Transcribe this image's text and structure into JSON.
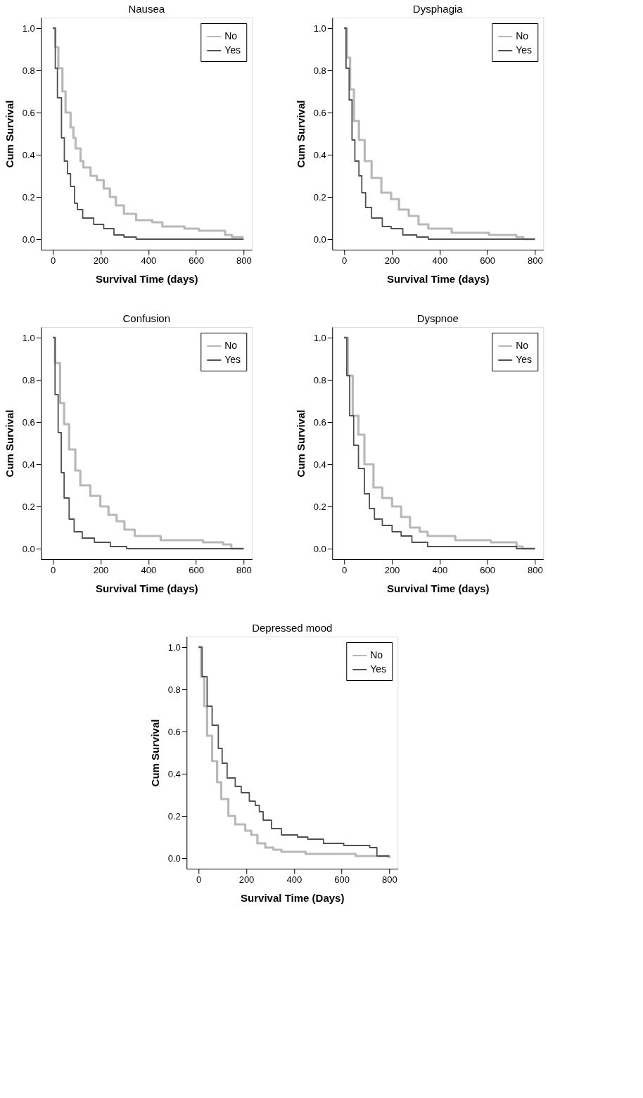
{
  "chart_data": [
    {
      "type": "step",
      "title": "Nausea",
      "xlabel": "Survival Time (days)",
      "ylabel": "Cum Survival",
      "xlim": [
        -50,
        835
      ],
      "xticks": [
        0,
        200,
        400,
        600,
        800
      ],
      "ylim": [
        -0.05,
        1.05
      ],
      "yticks": [
        {
          "value": 0,
          "label": "0.0"
        },
        {
          "value": 0.2,
          "label": "0.2"
        },
        {
          "value": 0.4,
          "label": "0.4"
        },
        {
          "value": 0.6,
          "label": "0.6"
        },
        {
          "value": 0.8,
          "label": "0.8"
        },
        {
          "value": 1,
          "label": "1.0"
        }
      ],
      "grid": false,
      "legend": "top right",
      "series": [
        {
          "name": "No",
          "color": "#b8b8b8",
          "x": [
            0,
            10,
            23,
            40,
            53,
            74,
            86,
            95,
            116,
            128,
            158,
            184,
            213,
            239,
            264,
            298,
            349,
            417,
            459,
            552,
            612,
            688,
            722,
            751,
            800
          ],
          "values": [
            1.0,
            0.91,
            0.81,
            0.7,
            0.6,
            0.53,
            0.48,
            0.43,
            0.37,
            0.34,
            0.3,
            0.28,
            0.24,
            0.2,
            0.16,
            0.12,
            0.09,
            0.08,
            0.06,
            0.05,
            0.04,
            0.04,
            0.02,
            0.01,
            0.01
          ]
        },
        {
          "name": "Yes",
          "color": "#505050",
          "x": [
            0,
            10,
            19,
            36,
            48,
            61,
            74,
            91,
            103,
            125,
            171,
            213,
            256,
            298,
            349,
            800
          ],
          "values": [
            1.0,
            0.81,
            0.67,
            0.48,
            0.37,
            0.31,
            0.25,
            0.17,
            0.14,
            0.1,
            0.07,
            0.05,
            0.02,
            0.01,
            0.0,
            0.0
          ]
        }
      ]
    },
    {
      "type": "step",
      "title": "Dysphagia",
      "xlabel": "Survival Time (days)",
      "ylabel": "Cum Survival",
      "xlim": [
        -50,
        835
      ],
      "xticks": [
        0,
        200,
        400,
        600,
        800
      ],
      "ylim": [
        -0.05,
        1.05
      ],
      "yticks": [
        {
          "value": 0,
          "label": "0.0"
        },
        {
          "value": 0.2,
          "label": "0.2"
        },
        {
          "value": 0.4,
          "label": "0.4"
        },
        {
          "value": 0.6,
          "label": "0.6"
        },
        {
          "value": 0.8,
          "label": "0.8"
        },
        {
          "value": 1,
          "label": "1.0"
        }
      ],
      "grid": false,
      "legend": "top right",
      "series": [
        {
          "name": "No",
          "color": "#b8b8b8",
          "x": [
            0,
            12,
            25,
            41,
            62,
            86,
            115,
            156,
            197,
            230,
            271,
            312,
            353,
            451,
            607,
            722,
            751,
            800
          ],
          "values": [
            1.0,
            0.86,
            0.71,
            0.56,
            0.47,
            0.37,
            0.29,
            0.22,
            0.19,
            0.14,
            0.11,
            0.07,
            0.05,
            0.03,
            0.02,
            0.01,
            0.0,
            0.0
          ]
        },
        {
          "name": "Yes",
          "color": "#505050",
          "x": [
            0,
            8,
            21,
            33,
            45,
            62,
            74,
            90,
            115,
            160,
            197,
            246,
            304,
            353,
            800
          ],
          "values": [
            1.0,
            0.81,
            0.66,
            0.47,
            0.37,
            0.3,
            0.22,
            0.15,
            0.1,
            0.06,
            0.05,
            0.02,
            0.01,
            0.0,
            0.0
          ]
        }
      ]
    },
    {
      "type": "step",
      "title": "Confusion",
      "xlabel": "Survival Time (days)",
      "ylabel": "Cum Survival",
      "xlim": [
        -50,
        835
      ],
      "xticks": [
        0,
        200,
        400,
        600,
        800
      ],
      "ylim": [
        -0.05,
        1.05
      ],
      "yticks": [
        {
          "value": 0,
          "label": "0.0"
        },
        {
          "value": 0.2,
          "label": "0.2"
        },
        {
          "value": 0.4,
          "label": "0.4"
        },
        {
          "value": 0.6,
          "label": "0.6"
        },
        {
          "value": 0.8,
          "label": "0.8"
        },
        {
          "value": 1,
          "label": "1.0"
        }
      ],
      "grid": false,
      "legend": "top right",
      "series": [
        {
          "name": "No",
          "color": "#b8b8b8",
          "x": [
            0,
            9,
            30,
            47,
            68,
            94,
            115,
            157,
            199,
            233,
            267,
            300,
            343,
            452,
            630,
            714,
            748,
            800
          ],
          "values": [
            1.0,
            0.88,
            0.69,
            0.59,
            0.47,
            0.37,
            0.3,
            0.25,
            0.2,
            0.16,
            0.13,
            0.09,
            0.06,
            0.04,
            0.03,
            0.02,
            0.0,
            0.0
          ]
        },
        {
          "name": "Yes",
          "color": "#505050",
          "x": [
            0,
            9,
            22,
            35,
            47,
            68,
            89,
            123,
            174,
            241,
            309,
            800
          ],
          "values": [
            1.0,
            0.73,
            0.55,
            0.36,
            0.24,
            0.14,
            0.08,
            0.05,
            0.03,
            0.01,
            0.0,
            0.0
          ]
        }
      ]
    },
    {
      "type": "step",
      "title": "Dyspnoe",
      "xlabel": "Survival Time (days)",
      "ylabel": "Cum Survival",
      "xlim": [
        -50,
        835
      ],
      "xticks": [
        0,
        200,
        400,
        600,
        800
      ],
      "ylim": [
        -0.05,
        1.05
      ],
      "yticks": [
        {
          "value": 0,
          "label": "0.0"
        },
        {
          "value": 0.2,
          "label": "0.2"
        },
        {
          "value": 0.4,
          "label": "0.4"
        },
        {
          "value": 0.6,
          "label": "0.6"
        },
        {
          "value": 0.8,
          "label": "0.8"
        },
        {
          "value": 1,
          "label": "1.0"
        }
      ],
      "grid": false,
      "legend": "top right",
      "series": [
        {
          "name": "No",
          "color": "#b8b8b8",
          "x": [
            0,
            15,
            36,
            60,
            85,
            123,
            160,
            201,
            239,
            276,
            317,
            350,
            466,
            615,
            723,
            748,
            800
          ],
          "values": [
            1.0,
            0.82,
            0.63,
            0.54,
            0.4,
            0.29,
            0.24,
            0.2,
            0.15,
            0.1,
            0.08,
            0.06,
            0.04,
            0.03,
            0.01,
            0.0,
            0.0
          ]
        },
        {
          "name": "Yes",
          "color": "#505050",
          "x": [
            0,
            11,
            23,
            40,
            60,
            85,
            106,
            127,
            160,
            201,
            239,
            284,
            350,
            466,
            723,
            800
          ],
          "values": [
            1.0,
            0.82,
            0.63,
            0.49,
            0.38,
            0.26,
            0.19,
            0.14,
            0.11,
            0.08,
            0.06,
            0.03,
            0.01,
            0.01,
            0.0,
            0.0
          ]
        }
      ]
    },
    {
      "type": "step",
      "title": "Depressed mood",
      "xlabel": "Survival Time (Days)",
      "ylabel": "Cum Survival",
      "xlim": [
        -50,
        835
      ],
      "xticks": [
        0,
        200,
        400,
        600,
        800
      ],
      "ylim": [
        -0.05,
        1.05
      ],
      "yticks": [
        {
          "value": 0,
          "label": "0.0"
        },
        {
          "value": 0.2,
          "label": "0.2"
        },
        {
          "value": 0.4,
          "label": "0.4"
        },
        {
          "value": 0.6,
          "label": "0.6"
        },
        {
          "value": 0.8,
          "label": "0.8"
        },
        {
          "value": 1,
          "label": "1.0"
        }
      ],
      "grid": false,
      "legend": "top right",
      "series": [
        {
          "name": "No",
          "color": "#b8b8b8",
          "x": [
            0,
            11,
            24,
            36,
            57,
            78,
            95,
            125,
            154,
            196,
            221,
            247,
            280,
            314,
            348,
            449,
            659,
            727,
            800
          ],
          "values": [
            1.0,
            0.86,
            0.72,
            0.58,
            0.46,
            0.36,
            0.28,
            0.2,
            0.16,
            0.13,
            0.11,
            0.07,
            0.05,
            0.04,
            0.03,
            0.02,
            0.01,
            0.01,
            0.0
          ]
        },
        {
          "name": "Yes",
          "color": "#505050",
          "x": [
            0,
            15,
            36,
            57,
            83,
            99,
            120,
            154,
            179,
            213,
            238,
            255,
            271,
            306,
            348,
            415,
            458,
            524,
            609,
            659,
            718,
            748,
            800
          ],
          "values": [
            1.0,
            0.86,
            0.72,
            0.63,
            0.52,
            0.45,
            0.38,
            0.34,
            0.31,
            0.27,
            0.25,
            0.22,
            0.18,
            0.14,
            0.11,
            0.1,
            0.09,
            0.07,
            0.06,
            0.06,
            0.05,
            0.01,
            0.01
          ]
        }
      ]
    }
  ]
}
